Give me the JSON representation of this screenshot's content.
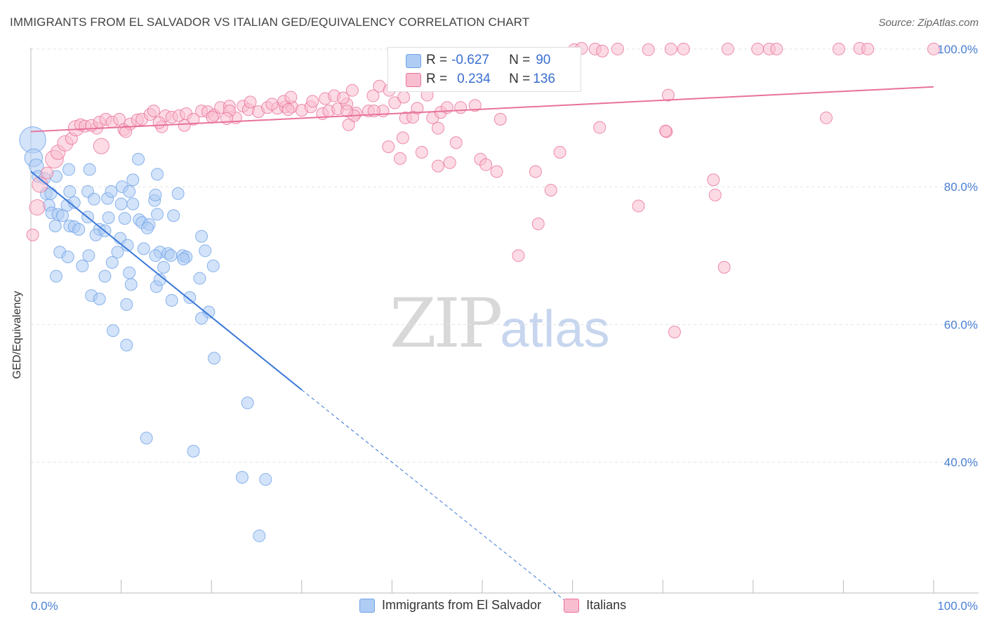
{
  "title": "IMMIGRANTS FROM EL SALVADOR VS ITALIAN GED/EQUIVALENCY CORRELATION CHART",
  "source": "Source: ZipAtlas.com",
  "watermark": {
    "zip": "ZIP",
    "atlas": "atlas"
  },
  "legend_top": {
    "rows": [
      {
        "r_label": "R = ",
        "r_value": "-0.627",
        "n_label": "N = ",
        "n_value": "90",
        "color": "#aeccf4"
      },
      {
        "r_label": "R = ",
        "r_value": "0.234",
        "n_label": "N = ",
        "n_value": "136",
        "color": "#f9bdd0"
      }
    ]
  },
  "chart_data": {
    "type": "scatter",
    "title": "IMMIGRANTS FROM EL SALVADOR VS ITALIAN GED/EQUIVALENCY CORRELATION CHART",
    "xlabel": "",
    "ylabel": "GED/Equivalency",
    "xlim": [
      0,
      100
    ],
    "ylim": [
      21,
      101
    ],
    "x_tick_labels": [
      "0.0%",
      "100.0%"
    ],
    "y_ticks": [
      40,
      60,
      80,
      100
    ],
    "y_tick_labels": [
      "40.0%",
      "60.0%",
      "80.0%",
      "100.0%"
    ],
    "grid": true,
    "legend_position": "bottom",
    "series": [
      {
        "name": "Immigrants from El Salvador",
        "color": "#6fa3e8",
        "fill": "#aeccf4",
        "trend": {
          "x0": 0,
          "y0": 82.2,
          "x1": 30,
          "y1": 50.5,
          "dash_to_x": 60,
          "dash_to_y": 19.0
        },
        "points": [
          [
            0.2,
            86.8,
            2.2
          ],
          [
            0.3,
            84.2,
            1.5
          ],
          [
            0.6,
            83.0,
            1.2
          ],
          [
            0.8,
            81.5,
            1
          ],
          [
            1.5,
            81.2,
            1
          ],
          [
            2.8,
            81.5,
            1
          ],
          [
            4.2,
            82.5,
            1
          ],
          [
            1.7,
            79.0,
            1
          ],
          [
            2.2,
            79.0,
            1
          ],
          [
            4.3,
            79.3,
            1
          ],
          [
            6.3,
            79.3,
            1
          ],
          [
            2.0,
            77.3,
            1
          ],
          [
            4.0,
            77.3,
            1
          ],
          [
            4.8,
            77.7,
            1
          ],
          [
            7.0,
            78.2,
            1
          ],
          [
            8.5,
            78.3,
            1
          ],
          [
            10.0,
            77.5,
            1
          ],
          [
            11.3,
            77.5,
            1
          ],
          [
            2.3,
            76.2,
            1
          ],
          [
            3.0,
            76.0,
            1
          ],
          [
            3.5,
            75.8,
            1
          ],
          [
            6.3,
            75.6,
            1
          ],
          [
            8.6,
            75.5,
            1
          ],
          [
            10.4,
            75.4,
            1
          ],
          [
            12.0,
            75.2,
            1
          ],
          [
            12.3,
            74.8,
            1
          ],
          [
            13.1,
            74.5,
            1
          ],
          [
            2.7,
            74.3,
            1
          ],
          [
            4.3,
            74.3,
            1
          ],
          [
            4.8,
            74.2,
            1
          ],
          [
            5.3,
            73.8,
            1
          ],
          [
            7.6,
            73.8,
            1
          ],
          [
            7.2,
            73.0,
            1
          ],
          [
            12.9,
            74.0,
            1
          ],
          [
            14.0,
            76.0,
            1
          ],
          [
            9.6,
            70.5,
            1
          ],
          [
            12.5,
            71.0,
            1
          ],
          [
            14.3,
            70.5,
            1
          ],
          [
            15.2,
            70.3,
            1
          ],
          [
            13.8,
            70.0,
            1
          ],
          [
            3.2,
            70.5,
            1
          ],
          [
            4.1,
            69.8,
            1
          ],
          [
            6.4,
            70.0,
            1
          ],
          [
            9.0,
            69.0,
            1
          ],
          [
            10.9,
            67.5,
            1
          ],
          [
            14.7,
            68.3,
            1
          ],
          [
            16.8,
            70.0,
            1
          ],
          [
            17.2,
            69.8,
            1
          ],
          [
            5.7,
            68.5,
            1
          ],
          [
            2.8,
            67.0,
            1
          ],
          [
            8.2,
            67.0,
            1
          ],
          [
            11.1,
            65.8,
            1
          ],
          [
            13.9,
            65.5,
            1
          ],
          [
            14.3,
            66.5,
            1
          ],
          [
            15.6,
            63.5,
            1
          ],
          [
            17.6,
            63.9,
            1
          ],
          [
            6.7,
            64.2,
            1
          ],
          [
            7.6,
            63.7,
            1
          ],
          [
            10.6,
            62.9,
            1
          ],
          [
            18.7,
            66.7,
            1
          ],
          [
            19.7,
            61.8,
            1
          ],
          [
            18.9,
            60.9,
            1
          ],
          [
            9.1,
            59.1,
            1
          ],
          [
            10.6,
            57.0,
            1
          ],
          [
            20.3,
            55.1,
            1
          ],
          [
            24.0,
            48.6,
            1
          ],
          [
            12.8,
            43.5,
            1
          ],
          [
            18.0,
            41.6,
            1
          ],
          [
            23.4,
            37.8,
            1
          ],
          [
            26.0,
            37.5,
            1
          ],
          [
            25.3,
            29.3,
            1
          ],
          [
            8.9,
            79.3,
            1
          ],
          [
            10.1,
            80.0,
            1
          ],
          [
            10.9,
            79.3,
            1
          ],
          [
            11.3,
            81.0,
            1
          ],
          [
            14.0,
            81.8,
            1
          ],
          [
            16.3,
            79.0,
            1
          ],
          [
            11.9,
            84.0,
            1
          ],
          [
            6.5,
            82.5,
            1
          ],
          [
            20.2,
            68.5,
            1
          ],
          [
            19.3,
            70.7,
            1
          ],
          [
            18.9,
            72.8,
            1
          ],
          [
            13.7,
            78.0,
            1
          ],
          [
            13.8,
            78.8,
            1
          ],
          [
            9.9,
            72.5,
            1
          ],
          [
            10.7,
            71.5,
            1
          ],
          [
            15.5,
            70.0,
            1
          ],
          [
            16.9,
            69.5,
            1
          ],
          [
            8.2,
            73.6,
            1
          ],
          [
            15.8,
            75.8,
            1
          ]
        ]
      },
      {
        "name": "Italians",
        "color": "#e8729a",
        "fill": "#f9bdd0",
        "trend": {
          "x0": 0,
          "y0": 88.0,
          "x1": 100,
          "y1": 94.5
        },
        "points": [
          [
            0.2,
            73.0,
            1
          ],
          [
            0.7,
            77.0,
            1.3
          ],
          [
            1.0,
            80.3,
            1.3
          ],
          [
            1.8,
            82.0,
            1
          ],
          [
            2.6,
            84.0,
            1.5
          ],
          [
            3.0,
            85.0,
            1.2
          ],
          [
            3.8,
            86.3,
            1.3
          ],
          [
            4.5,
            87.0,
            1
          ],
          [
            5.0,
            88.5,
            1.3
          ],
          [
            5.5,
            89.0,
            1
          ],
          [
            6.0,
            88.8,
            1
          ],
          [
            7.3,
            88.5,
            1
          ],
          [
            6.7,
            88.9,
            1
          ],
          [
            7.6,
            89.4,
            1
          ],
          [
            8.3,
            89.8,
            1
          ],
          [
            9.0,
            89.4,
            1
          ],
          [
            9.8,
            89.8,
            1
          ],
          [
            10.3,
            88.3,
            1
          ],
          [
            11.0,
            89.1,
            1
          ],
          [
            11.8,
            89.7,
            1
          ],
          [
            12.3,
            89.8,
            1
          ],
          [
            13.2,
            90.5,
            1
          ],
          [
            14.5,
            88.7,
            1
          ],
          [
            14.9,
            90.3,
            1
          ],
          [
            15.6,
            90.1,
            1
          ],
          [
            16.4,
            90.3,
            1
          ],
          [
            17.2,
            90.6,
            1
          ],
          [
            18.0,
            89.8,
            1
          ],
          [
            18.9,
            91.0,
            1
          ],
          [
            19.6,
            90.9,
            1
          ],
          [
            20.3,
            90.4,
            1
          ],
          [
            21.0,
            91.5,
            1
          ],
          [
            22.0,
            91.7,
            1
          ],
          [
            22.7,
            90.0,
            1
          ],
          [
            23.5,
            91.7,
            1
          ],
          [
            24.1,
            91.2,
            1
          ],
          [
            25.2,
            90.9,
            1
          ],
          [
            26.2,
            91.5,
            1
          ],
          [
            27.3,
            91.4,
            1
          ],
          [
            28.2,
            91.6,
            1
          ],
          [
            28.9,
            91.6,
            1
          ],
          [
            30.0,
            91.1,
            1
          ],
          [
            31.0,
            91.6,
            1
          ],
          [
            32.3,
            90.6,
            1
          ],
          [
            33.0,
            91.0,
            1
          ],
          [
            34.0,
            91.3,
            1
          ],
          [
            35.0,
            92.0,
            1
          ],
          [
            36.0,
            90.7,
            1
          ],
          [
            37.4,
            91.0,
            1
          ],
          [
            39.0,
            91.0,
            1
          ],
          [
            40.3,
            92.2,
            1
          ],
          [
            41.5,
            90.0,
            1
          ],
          [
            42.8,
            91.4,
            1
          ],
          [
            44.5,
            90.0,
            1
          ],
          [
            45.4,
            90.8,
            1
          ],
          [
            46.1,
            91.5,
            1
          ],
          [
            49.2,
            91.8,
            1
          ],
          [
            52.0,
            89.8,
            1
          ],
          [
            7.8,
            85.9,
            1.3
          ],
          [
            10.5,
            88.0,
            1
          ],
          [
            14.2,
            89.3,
            1
          ],
          [
            17.0,
            88.9,
            1
          ],
          [
            22.0,
            91.0,
            1
          ],
          [
            24.3,
            92.3,
            1
          ],
          [
            26.7,
            92.0,
            1
          ],
          [
            28.0,
            92.4,
            1
          ],
          [
            28.8,
            93.0,
            1
          ],
          [
            31.2,
            92.4,
            1
          ],
          [
            32.6,
            92.8,
            1
          ],
          [
            33.6,
            93.2,
            1
          ],
          [
            34.6,
            92.9,
            1
          ],
          [
            35.6,
            94.0,
            1
          ],
          [
            37.9,
            93.2,
            1
          ],
          [
            38.6,
            94.6,
            1
          ],
          [
            39.7,
            94.0,
            1
          ],
          [
            41.3,
            93.0,
            1
          ],
          [
            43.9,
            93.3,
            1
          ],
          [
            46.0,
            95.3,
            1
          ],
          [
            49.7,
            94.7,
            1
          ],
          [
            50.4,
            96.0,
            1
          ],
          [
            53.1,
            95.8,
            1
          ],
          [
            54.8,
            97.4,
            1
          ],
          [
            56.0,
            95.5,
            1
          ],
          [
            58.1,
            96.2,
            1
          ],
          [
            60.2,
            99.9,
            1
          ],
          [
            61.0,
            100.1,
            1
          ],
          [
            62.5,
            100.0,
            1
          ],
          [
            63.3,
            99.7,
            1
          ],
          [
            65.0,
            100.0,
            1
          ],
          [
            68.4,
            99.9,
            1
          ],
          [
            70.9,
            100.0,
            1
          ],
          [
            72.3,
            100.0,
            1
          ],
          [
            77.2,
            100.0,
            1
          ],
          [
            80.5,
            100.0,
            1
          ],
          [
            81.8,
            100.0,
            1
          ],
          [
            82.6,
            100.0,
            1
          ],
          [
            89.5,
            100.0,
            1
          ],
          [
            91.8,
            100.1,
            1
          ],
          [
            92.7,
            100.0,
            1
          ],
          [
            100.0,
            100.0,
            1
          ],
          [
            35.8,
            90.3,
            1
          ],
          [
            35.0,
            91.0,
            1
          ],
          [
            28.5,
            91.2,
            1
          ],
          [
            38.0,
            91.0,
            1
          ],
          [
            47.6,
            91.5,
            1
          ],
          [
            42.3,
            90.1,
            1
          ],
          [
            20.1,
            90.1,
            1
          ],
          [
            13.6,
            91.0,
            1
          ],
          [
            21.7,
            89.9,
            1
          ],
          [
            45.1,
            88.5,
            1
          ],
          [
            47.1,
            86.4,
            1
          ],
          [
            41.2,
            87.1,
            1
          ],
          [
            35.2,
            89.0,
            1
          ],
          [
            58.6,
            85.0,
            1
          ],
          [
            70.4,
            88.0,
            1
          ],
          [
            88.1,
            90.0,
            1
          ],
          [
            70.3,
            88.1,
            1
          ],
          [
            43.3,
            85.0,
            1
          ],
          [
            49.8,
            84.0,
            1
          ],
          [
            51.6,
            82.2,
            1
          ],
          [
            39.6,
            85.8,
            1
          ],
          [
            40.9,
            84.1,
            1
          ],
          [
            45.1,
            83.0,
            1
          ],
          [
            46.4,
            83.5,
            1
          ],
          [
            55.9,
            82.2,
            1
          ],
          [
            50.4,
            83.2,
            1
          ],
          [
            57.6,
            79.5,
            1
          ],
          [
            67.3,
            77.2,
            1
          ],
          [
            75.8,
            78.8,
            1
          ],
          [
            76.8,
            68.3,
            1
          ],
          [
            56.2,
            74.6,
            1
          ],
          [
            54.0,
            70.0,
            1
          ],
          [
            71.3,
            58.9,
            1
          ],
          [
            70.6,
            93.3,
            1
          ],
          [
            75.6,
            81.0,
            1
          ],
          [
            63.0,
            88.6,
            1
          ]
        ]
      }
    ]
  },
  "bottom_legend": [
    {
      "label": "Immigrants from El Salvador",
      "color": "#aeccf4",
      "border": "#6fa3e8"
    },
    {
      "label": "Italians",
      "color": "#f9bdd0",
      "border": "#e8729a"
    }
  ]
}
